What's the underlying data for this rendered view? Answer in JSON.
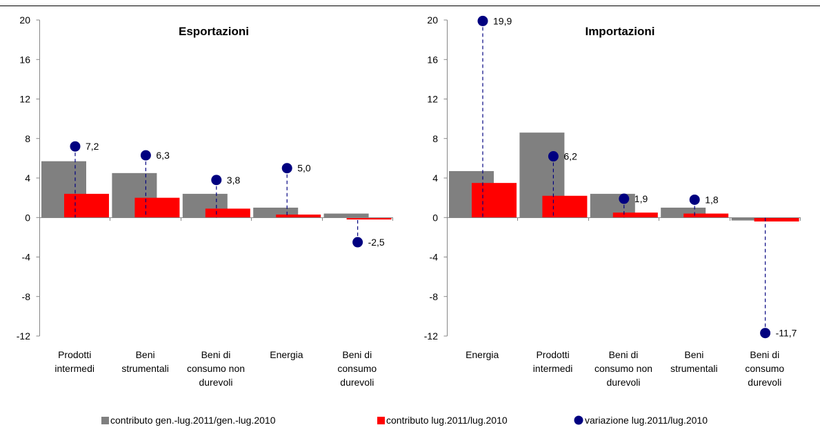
{
  "colors": {
    "gray_bar": "#808080",
    "red_bar": "#ff0000",
    "dot": "#000080",
    "axis": "#868686",
    "top_rule": "#000000"
  },
  "legend": {
    "gray": "contributo gen.-lug.2011/gen.-lug.2010",
    "red": "contributo lug.2011/lug.2010",
    "dot": "variazione lug.2011/lug.2010"
  },
  "chart_data": [
    {
      "type": "bar",
      "title": "Esportazioni",
      "ylim": [
        -12,
        20
      ],
      "yticks": [
        "20",
        "16",
        "12",
        "8",
        "4",
        "0",
        "-4",
        "-8",
        "-12"
      ],
      "categories": [
        [
          "Prodotti",
          "intermedi"
        ],
        [
          "Beni",
          "strumentali"
        ],
        [
          "Beni di",
          "consumo non",
          "durevoli"
        ],
        [
          "Energia"
        ],
        [
          "Beni di",
          "consumo",
          "durevoli"
        ]
      ],
      "series": [
        {
          "name": "contributo gen.-lug.2011/gen.-lug.2010",
          "kind": "bar",
          "color": "#808080",
          "values": [
            5.7,
            4.5,
            2.4,
            1.0,
            0.4
          ]
        },
        {
          "name": "contributo lug.2011/lug.2010",
          "kind": "bar",
          "color": "#ff0000",
          "values": [
            2.4,
            2.0,
            0.9,
            0.3,
            -0.2
          ]
        },
        {
          "name": "variazione lug.2011/lug.2010",
          "kind": "dot",
          "color": "#000080",
          "values": [
            7.2,
            6.3,
            3.8,
            5.0,
            -2.5
          ],
          "labels": [
            "7,2",
            "6,3",
            "3,8",
            "5,0",
            "-2,5"
          ]
        }
      ],
      "grid": false
    },
    {
      "type": "bar",
      "title": "Importazioni",
      "ylim": [
        -12,
        20
      ],
      "yticks": [
        "20",
        "16",
        "12",
        "8",
        "4",
        "0",
        "-4",
        "-8",
        "-12"
      ],
      "categories": [
        [
          "Energia"
        ],
        [
          "Prodotti",
          "intermedi"
        ],
        [
          "Beni di",
          "consumo non",
          "durevoli"
        ],
        [
          "Beni",
          "strumentali"
        ],
        [
          "Beni di",
          "consumo",
          "durevoli"
        ]
      ],
      "series": [
        {
          "name": "contributo gen.-lug.2011/gen.-lug.2010",
          "kind": "bar",
          "color": "#808080",
          "values": [
            4.7,
            8.6,
            2.4,
            1.0,
            -0.3
          ]
        },
        {
          "name": "contributo lug.2011/lug.2010",
          "kind": "bar",
          "color": "#ff0000",
          "values": [
            3.5,
            2.2,
            0.5,
            0.4,
            -0.4
          ]
        },
        {
          "name": "variazione lug.2011/lug.2010",
          "kind": "dot",
          "color": "#000080",
          "values": [
            19.9,
            6.2,
            1.9,
            1.8,
            -11.7
          ],
          "labels": [
            "19,9",
            "6,2",
            "1,9",
            "1,8",
            "-11,7"
          ]
        }
      ],
      "grid": false
    }
  ]
}
